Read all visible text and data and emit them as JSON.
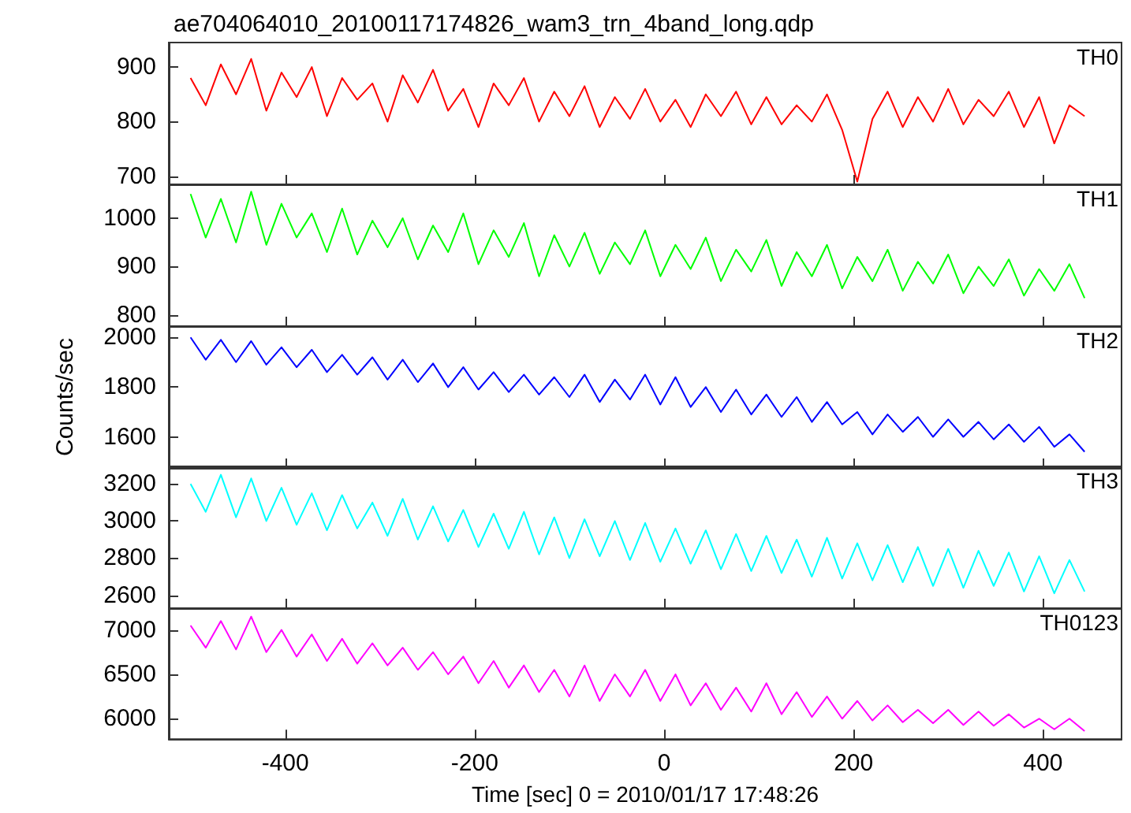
{
  "chart_data": [
    {
      "type": "line",
      "title": "ae704064010_20100117174826_wam3_trn_4band_long.qdp",
      "tick_labels": "y",
      "marker": "none",
      "x": [
        -500,
        -484,
        -468,
        -452,
        -436,
        -420,
        -404,
        -388,
        -372,
        -356,
        -340,
        -324,
        -308,
        -292,
        -276,
        -260,
        -244,
        -228,
        -212,
        -196,
        -180,
        -164,
        -148,
        -132,
        -116,
        -100,
        -84,
        -68,
        -52,
        -36,
        -20,
        -4,
        12,
        28,
        44,
        60,
        76,
        92,
        108,
        124,
        140,
        156,
        172,
        188,
        204,
        220,
        236,
        252,
        268,
        284,
        300,
        316,
        332,
        348,
        364,
        380,
        396,
        412,
        428,
        444
      ],
      "xlim": [
        -523,
        483
      ],
      "xticks": [
        -400,
        -200,
        0,
        200,
        400
      ],
      "ylim": [
        685,
        945
      ],
      "yticks": [
        700,
        800,
        900
      ],
      "series": [
        {
          "name": "TH0",
          "color": "#ff0000",
          "values": [
            880,
            830,
            905,
            850,
            915,
            820,
            890,
            845,
            900,
            810,
            880,
            840,
            870,
            800,
            885,
            835,
            895,
            820,
            860,
            790,
            870,
            830,
            880,
            800,
            855,
            810,
            865,
            790,
            845,
            805,
            860,
            800,
            840,
            790,
            850,
            810,
            855,
            795,
            845,
            795,
            830,
            800,
            850,
            785,
            690,
            805,
            855,
            790,
            845,
            800,
            860,
            795,
            840,
            810,
            855,
            790,
            845,
            760,
            830,
            810
          ]
        }
      ]
    },
    {
      "type": "line",
      "tick_labels": "y",
      "marker": "none",
      "x": [
        -500,
        -484,
        -468,
        -452,
        -436,
        -420,
        -404,
        -388,
        -372,
        -356,
        -340,
        -324,
        -308,
        -292,
        -276,
        -260,
        -244,
        -228,
        -212,
        -196,
        -180,
        -164,
        -148,
        -132,
        -116,
        -100,
        -84,
        -68,
        -52,
        -36,
        -20,
        -4,
        12,
        28,
        44,
        60,
        76,
        92,
        108,
        124,
        140,
        156,
        172,
        188,
        204,
        220,
        236,
        252,
        268,
        284,
        300,
        316,
        332,
        348,
        364,
        380,
        396,
        412,
        428,
        444
      ],
      "xlim": [
        -523,
        483
      ],
      "xticks": [
        -400,
        -200,
        0,
        200,
        400
      ],
      "ylim": [
        777,
        1070
      ],
      "yticks": [
        800,
        900,
        1000
      ],
      "series": [
        {
          "name": "TH1",
          "color": "#00ff00",
          "values": [
            1050,
            960,
            1040,
            950,
            1055,
            945,
            1030,
            960,
            1010,
            930,
            1020,
            925,
            995,
            940,
            1000,
            915,
            985,
            930,
            1010,
            905,
            975,
            920,
            990,
            880,
            965,
            900,
            970,
            885,
            950,
            905,
            975,
            880,
            945,
            895,
            960,
            870,
            935,
            890,
            955,
            860,
            930,
            880,
            945,
            855,
            920,
            870,
            935,
            850,
            910,
            865,
            925,
            845,
            900,
            860,
            915,
            840,
            895,
            850,
            905,
            835
          ]
        }
      ]
    },
    {
      "type": "line",
      "tick_labels": "y",
      "marker": "none",
      "ylabel": "Counts/sec",
      "x": [
        -500,
        -484,
        -468,
        -452,
        -436,
        -420,
        -404,
        -388,
        -372,
        -356,
        -340,
        -324,
        -308,
        -292,
        -276,
        -260,
        -244,
        -228,
        -212,
        -196,
        -180,
        -164,
        -148,
        -132,
        -116,
        -100,
        -84,
        -68,
        -52,
        -36,
        -20,
        -4,
        12,
        28,
        44,
        60,
        76,
        92,
        108,
        124,
        140,
        156,
        172,
        188,
        204,
        220,
        236,
        252,
        268,
        284,
        300,
        316,
        332,
        348,
        364,
        380,
        396,
        412,
        428,
        444
      ],
      "xlim": [
        -523,
        483
      ],
      "xticks": [
        -400,
        -200,
        0,
        200,
        400
      ],
      "ylim": [
        1475,
        2045
      ],
      "yticks": [
        1600,
        1800,
        2000
      ],
      "series": [
        {
          "name": "TH2",
          "color": "#0000ff",
          "values": [
            2000,
            1910,
            1990,
            1900,
            1985,
            1890,
            1960,
            1880,
            1950,
            1860,
            1930,
            1850,
            1920,
            1830,
            1910,
            1820,
            1895,
            1800,
            1880,
            1790,
            1860,
            1780,
            1850,
            1770,
            1840,
            1760,
            1850,
            1740,
            1830,
            1750,
            1850,
            1730,
            1840,
            1720,
            1800,
            1700,
            1790,
            1690,
            1770,
            1680,
            1760,
            1660,
            1740,
            1650,
            1700,
            1610,
            1690,
            1620,
            1680,
            1600,
            1670,
            1600,
            1660,
            1590,
            1650,
            1580,
            1640,
            1560,
            1610,
            1540
          ]
        }
      ]
    },
    {
      "type": "line",
      "tick_labels": "y",
      "marker": "none",
      "x": [
        -500,
        -484,
        -468,
        -452,
        -436,
        -420,
        -404,
        -388,
        -372,
        -356,
        -340,
        -324,
        -308,
        -292,
        -276,
        -260,
        -244,
        -228,
        -212,
        -196,
        -180,
        -164,
        -148,
        -132,
        -116,
        -100,
        -84,
        -68,
        -52,
        -36,
        -20,
        -4,
        12,
        28,
        44,
        60,
        76,
        92,
        108,
        124,
        140,
        156,
        172,
        188,
        204,
        220,
        236,
        252,
        268,
        284,
        300,
        316,
        332,
        348,
        364,
        380,
        396,
        412,
        428,
        444
      ],
      "xlim": [
        -523,
        483
      ],
      "xticks": [
        -400,
        -200,
        0,
        200,
        400
      ],
      "ylim": [
        2530,
        3295
      ],
      "yticks": [
        2600,
        2800,
        3000,
        3200
      ],
      "series": [
        {
          "name": "TH3",
          "color": "#00ffff",
          "values": [
            3200,
            3050,
            3250,
            3020,
            3230,
            3000,
            3180,
            2980,
            3150,
            2950,
            3140,
            2960,
            3100,
            2920,
            3120,
            2900,
            3080,
            2890,
            3060,
            2860,
            3040,
            2850,
            3050,
            2820,
            3020,
            2800,
            3010,
            2810,
            3000,
            2790,
            2990,
            2780,
            2960,
            2770,
            2950,
            2740,
            2930,
            2730,
            2920,
            2720,
            2900,
            2700,
            2910,
            2690,
            2880,
            2680,
            2870,
            2670,
            2860,
            2650,
            2850,
            2640,
            2840,
            2650,
            2830,
            2620,
            2810,
            2610,
            2790,
            2620
          ]
        }
      ]
    },
    {
      "type": "line",
      "marker": "none",
      "xlabel": "Time [sec] 0 = 2010/01/17 17:48:26",
      "x": [
        -500,
        -484,
        -468,
        -452,
        -436,
        -420,
        -404,
        -388,
        -372,
        -356,
        -340,
        -324,
        -308,
        -292,
        -276,
        -260,
        -244,
        -228,
        -212,
        -196,
        -180,
        -164,
        -148,
        -132,
        -116,
        -100,
        -84,
        -68,
        -52,
        -36,
        -20,
        -4,
        12,
        28,
        44,
        60,
        76,
        92,
        108,
        124,
        140,
        156,
        172,
        188,
        204,
        220,
        236,
        252,
        268,
        284,
        300,
        316,
        332,
        348,
        364,
        380,
        396,
        412,
        428,
        444
      ],
      "xlim": [
        -523,
        483
      ],
      "xticks": [
        -400,
        -200,
        0,
        200,
        400
      ],
      "ylim": [
        5770,
        7245
      ],
      "yticks": [
        6000,
        6500,
        7000
      ],
      "series": [
        {
          "name": "TH0123",
          "color": "#ff00ff",
          "values": [
            7050,
            6800,
            7100,
            6780,
            7150,
            6750,
            7000,
            6700,
            6950,
            6650,
            6900,
            6620,
            6850,
            6600,
            6800,
            6550,
            6750,
            6500,
            6700,
            6400,
            6650,
            6350,
            6600,
            6300,
            6550,
            6250,
            6600,
            6200,
            6500,
            6250,
            6550,
            6200,
            6500,
            6150,
            6400,
            6100,
            6350,
            6080,
            6400,
            6050,
            6300,
            6020,
            6250,
            6000,
            6200,
            5980,
            6150,
            5960,
            6100,
            5950,
            6100,
            5930,
            6080,
            5920,
            6050,
            5900,
            6000,
            5880,
            6000,
            5860
          ]
        }
      ]
    }
  ]
}
